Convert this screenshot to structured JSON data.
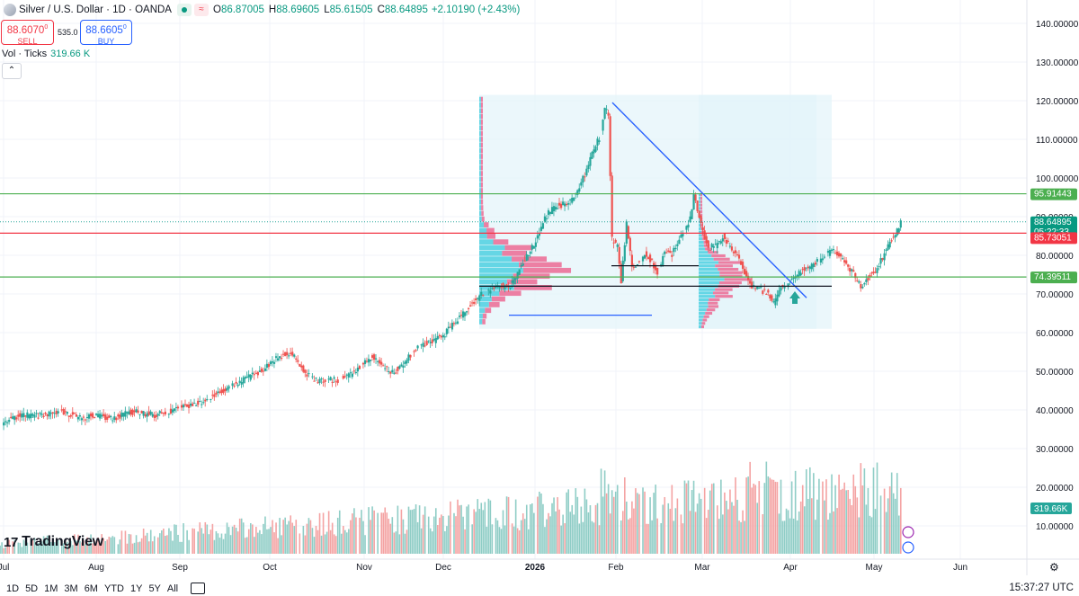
{
  "header": {
    "symbol": "Silver / U.S. Dollar · 1D · OANDA",
    "o_label": "O",
    "o": "86.87005",
    "h_label": "H",
    "h": "88.69605",
    "l_label": "L",
    "l": "85.61505",
    "c_label": "C",
    "c": "88.64895",
    "change": "+2.10190 (+2.43%)"
  },
  "trade": {
    "sell_price": "88.6070",
    "sell_sup": "0",
    "sell_label": "SELL",
    "spread": "535.0",
    "buy_price": "88.6605",
    "buy_sup": "0",
    "buy_label": "BUY"
  },
  "volume": {
    "label": "Vol · Ticks",
    "value": "319.66 K",
    "axis_value": "319.66K"
  },
  "branding": {
    "name": "TradingView"
  },
  "timeframes": [
    "1D",
    "5D",
    "1M",
    "3M",
    "6M",
    "YTD",
    "1Y",
    "5Y",
    "All"
  ],
  "clock": "15:37:27 UTC",
  "colors": {
    "up": "#26a69a",
    "down": "#ef5350",
    "vol_up": "#8fcdc6",
    "vol_down": "#f4a3a3",
    "green_line": "#4caf50",
    "red_line": "#f23645",
    "trend": "#2962ff"
  },
  "chart_data": {
    "type": "candlestick",
    "price_axis": {
      "min": 10,
      "max": 140,
      "ticks": [
        "140.00000",
        "130.00000",
        "120.00000",
        "110.00000",
        "100.00000",
        "90.00000",
        "80.00000",
        "70.00000",
        "60.00000",
        "50.00000",
        "40.00000",
        "30.00000",
        "20.00000",
        "10.00000"
      ]
    },
    "time_axis": {
      "labels": [
        "Jul",
        "Aug",
        "Sep",
        "Oct",
        "Nov",
        "Dec",
        "2026",
        "Feb",
        "Mar",
        "Apr",
        "May",
        "Jun"
      ]
    },
    "horizontal_lines": [
      {
        "price": 95.91443,
        "label": "95.91443",
        "color": "#4caf50"
      },
      {
        "price": 85.73051,
        "label": "85.73051",
        "color": "#f23645"
      },
      {
        "price": 74.39511,
        "label": "74.39511",
        "color": "#4caf50"
      }
    ],
    "last_price": {
      "value": "88.64895",
      "countdown": "05:22:33"
    },
    "price_path": [
      [
        0,
        36.4
      ],
      [
        10,
        38.5
      ],
      [
        20,
        38.6
      ],
      [
        30,
        39.2
      ],
      [
        35,
        39.6
      ],
      [
        40,
        38.5
      ],
      [
        45,
        37.7
      ],
      [
        50,
        38.6
      ],
      [
        55,
        38.3
      ],
      [
        60,
        37.9
      ],
      [
        65,
        38.2
      ],
      [
        70,
        39.3
      ],
      [
        75,
        39.4
      ],
      [
        80,
        39.0
      ],
      [
        85,
        38.7
      ],
      [
        90,
        39.3
      ],
      [
        95,
        40.0
      ],
      [
        100,
        40.8
      ],
      [
        105,
        41.3
      ],
      [
        110,
        42.0
      ],
      [
        115,
        43.1
      ],
      [
        120,
        44.4
      ],
      [
        125,
        45.6
      ],
      [
        130,
        46.7
      ],
      [
        135,
        48.0
      ],
      [
        140,
        49.1
      ],
      [
        145,
        50.7
      ],
      [
        150,
        52.5
      ],
      [
        155,
        54.1
      ],
      [
        160,
        55.0
      ],
      [
        165,
        51.5
      ],
      [
        170,
        48.8
      ],
      [
        175,
        47.4
      ],
      [
        180,
        47.9
      ],
      [
        185,
        47.6
      ],
      [
        190,
        48.4
      ],
      [
        195,
        49.7
      ],
      [
        200,
        52.3
      ],
      [
        205,
        54.1
      ],
      [
        210,
        51.5
      ],
      [
        215,
        49.6
      ],
      [
        220,
        50.9
      ],
      [
        225,
        53.8
      ],
      [
        230,
        56.2
      ],
      [
        235,
        57.5
      ],
      [
        240,
        58.2
      ],
      [
        245,
        59.8
      ],
      [
        250,
        62.5
      ],
      [
        255,
        64.8
      ],
      [
        260,
        67.7
      ],
      [
        265,
        69.8
      ],
      [
        270,
        71.0
      ],
      [
        275,
        72.3
      ],
      [
        280,
        71.6
      ],
      [
        285,
        75.5
      ],
      [
        290,
        79.5
      ],
      [
        295,
        83.6
      ],
      [
        300,
        89.8
      ],
      [
        305,
        92.5
      ],
      [
        310,
        93.2
      ],
      [
        315,
        94.1
      ],
      [
        320,
        98.5
      ],
      [
        325,
        105.0
      ],
      [
        330,
        110.5
      ],
      [
        333,
        118.0
      ],
      [
        335,
        116.5
      ],
      [
        337,
        84.0
      ],
      [
        340,
        82.1
      ],
      [
        342,
        73.2
      ],
      [
        345,
        88.2
      ],
      [
        348,
        76.5
      ],
      [
        352,
        78.5
      ],
      [
        355,
        80.7
      ],
      [
        358,
        79.0
      ],
      [
        362,
        75.3
      ],
      [
        366,
        81.0
      ],
      [
        370,
        80.3
      ],
      [
        375,
        85.0
      ],
      [
        380,
        89.5
      ],
      [
        382,
        95.5
      ],
      [
        385,
        89.5
      ],
      [
        390,
        81.8
      ],
      [
        394,
        82.6
      ],
      [
        398,
        84.9
      ],
      [
        402,
        82.0
      ],
      [
        406,
        80.5
      ],
      [
        410,
        75.5
      ],
      [
        414,
        71.6
      ],
      [
        418,
        71.3
      ],
      [
        422,
        70.3
      ],
      [
        426,
        67.7
      ],
      [
        430,
        72.1
      ],
      [
        434,
        72.6
      ],
      [
        438,
        74.4
      ],
      [
        442,
        76.6
      ],
      [
        446,
        77.2
      ],
      [
        450,
        78.5
      ],
      [
        454,
        79.8
      ],
      [
        458,
        81.2
      ],
      [
        462,
        80.5
      ],
      [
        466,
        77.5
      ],
      [
        470,
        75.0
      ],
      [
        474,
        72.0
      ],
      [
        478,
        74.3
      ],
      [
        482,
        76.0
      ],
      [
        486,
        79.5
      ],
      [
        490,
        83.5
      ],
      [
        494,
        86.5
      ],
      [
        496,
        88.65
      ]
    ],
    "volume_axis": {
      "ticks": [
        "40.00000",
        "30.00000",
        "20.00000",
        "10.00000"
      ]
    },
    "volume_profiles": [
      "Dec–Feb session range",
      "Mar–Apr session range"
    ],
    "drawings": [
      "descending trendline from 120 high",
      "support lines near 72 and 77",
      "upward arrow near Apr"
    ]
  }
}
